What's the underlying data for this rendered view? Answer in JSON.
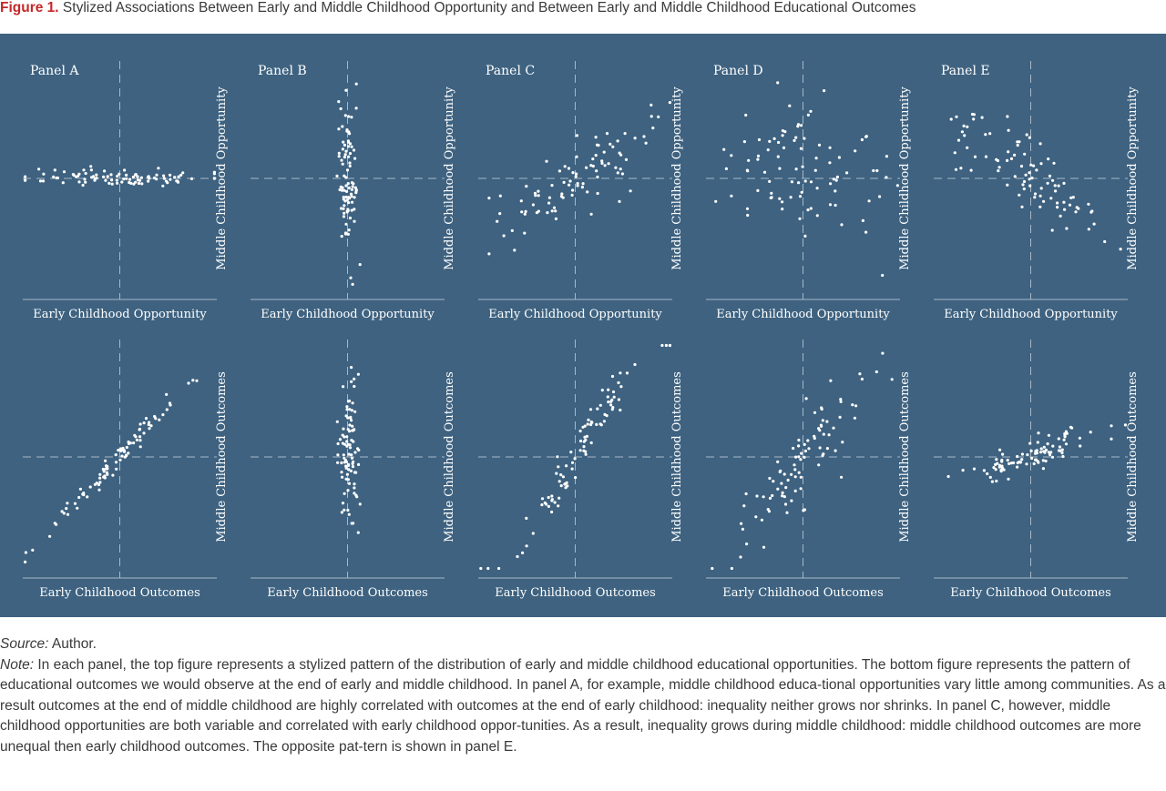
{
  "title": {
    "label": "Figure 1.",
    "text": "Stylized Associations Between Early and Middle Childhood Opportunity and Between Early and Middle Childhood Educational Outcomes"
  },
  "source": {
    "label": "Source:",
    "text": "Author."
  },
  "note": {
    "label": "Note:",
    "text": "In each panel, the top figure represents a stylized pattern of the distribution of early and middle childhood educational opportunities. The bottom figure represents the pattern of educational outcomes we would observe at the end of early and middle childhood. In panel A, for example, middle childhood educa-tional opportunities vary little among communities. As a result outcomes at the end of middle childhood are highly correlated with outcomes at the end of early childhood: inequality neither grows nor shrinks. In panel C, however, middle childhood opportunities are both variable and correlated with early childhood oppor-tunities. As a result, inequality grows during middle childhood: middle childhood outcomes are more unequal then early childhood outcomes. The opposite pat-tern is shown in panel E."
  },
  "colors": {
    "background": "#3e6280",
    "points": "#ffffff",
    "guides": "#a8b8c8",
    "title_label": "#c62828"
  },
  "chart_data": [
    {
      "type": "scatter",
      "panel": "Panel A",
      "row": "opportunity",
      "title": "Panel A",
      "xlabel": "Early Childhood Opportunity",
      "ylabel": "Middle Childhood Opportunity",
      "pattern": "x widely spread, y nearly constant (no association)",
      "n": 90,
      "x_sd": 0.78,
      "y_sd": 0.06,
      "slope": 0,
      "seed": 11
    },
    {
      "type": "scatter",
      "panel": "Panel B",
      "row": "opportunity",
      "title": "Panel B",
      "xlabel": "Early Childhood Opportunity",
      "ylabel": "Middle Childhood Opportunity",
      "pattern": "x nearly constant, y widely spread",
      "n": 90,
      "x_sd": 0.09,
      "y_sd": 0.55,
      "slope": 0,
      "seed": 12
    },
    {
      "type": "scatter",
      "panel": "Panel C",
      "row": "opportunity",
      "title": "Panel C",
      "xlabel": "Early Childhood Opportunity",
      "ylabel": "Middle Childhood Opportunity",
      "pattern": "moderate positive association",
      "n": 90,
      "x_sd": 0.72,
      "y_sd": 0.25,
      "slope": 0.55,
      "seed": 13
    },
    {
      "type": "scatter",
      "panel": "Panel D",
      "row": "opportunity",
      "title": "Panel D",
      "xlabel": "Early Childhood Opportunity",
      "ylabel": "Middle Childhood Opportunity",
      "pattern": "wide spread, no association",
      "n": 90,
      "x_sd": 0.72,
      "y_sd": 0.55,
      "slope": 0,
      "seed": 14
    },
    {
      "type": "scatter",
      "panel": "Panel E",
      "row": "opportunity",
      "title": "Panel E",
      "xlabel": "Early Childhood Opportunity",
      "ylabel": "Middle Childhood Opportunity",
      "pattern": "moderate negative association",
      "n": 90,
      "x_sd": 0.72,
      "y_sd": 0.25,
      "slope": -0.55,
      "seed": 15
    },
    {
      "type": "scatter",
      "panel": "Panel A",
      "row": "outcomes",
      "xlabel": "Early Childhood Outcomes",
      "ylabel": "Middle Childhood Outcomes",
      "pattern": "strong positive association (slope about 1)",
      "n": 90,
      "x_sd": 0.58,
      "y_sd": 0.08,
      "slope": 0.9,
      "seed": 21
    },
    {
      "type": "scatter",
      "panel": "Panel B",
      "row": "outcomes",
      "xlabel": "Early Childhood Outcomes",
      "ylabel": "Middle Childhood Outcomes",
      "pattern": "x nearly constant, y widely spread",
      "n": 90,
      "x_sd": 0.09,
      "y_sd": 0.5,
      "slope": 0,
      "seed": 22
    },
    {
      "type": "scatter",
      "panel": "Panel C",
      "row": "outcomes",
      "xlabel": "Early Childhood Outcomes",
      "ylabel": "Middle Childhood Outcomes",
      "pattern": "strong positive association, steeper than 1 (inequality grows)",
      "n": 90,
      "x_sd": 0.55,
      "y_sd": 0.14,
      "slope": 1.38,
      "seed": 23
    },
    {
      "type": "scatter",
      "panel": "Panel D",
      "row": "outcomes",
      "xlabel": "Early Childhood Outcomes",
      "ylabel": "Middle Childhood Outcomes",
      "pattern": "positive association with wide scatter",
      "n": 90,
      "x_sd": 0.55,
      "y_sd": 0.32,
      "slope": 0.9,
      "seed": 24
    },
    {
      "type": "scatter",
      "panel": "Panel E",
      "row": "outcomes",
      "xlabel": "Early Childhood Outcomes",
      "ylabel": "Middle Childhood Outcomes",
      "pattern": "weak positive association, flatter (inequality shrinks)",
      "n": 90,
      "x_sd": 0.58,
      "y_sd": 0.12,
      "slope": 0.28,
      "seed": 25
    }
  ]
}
